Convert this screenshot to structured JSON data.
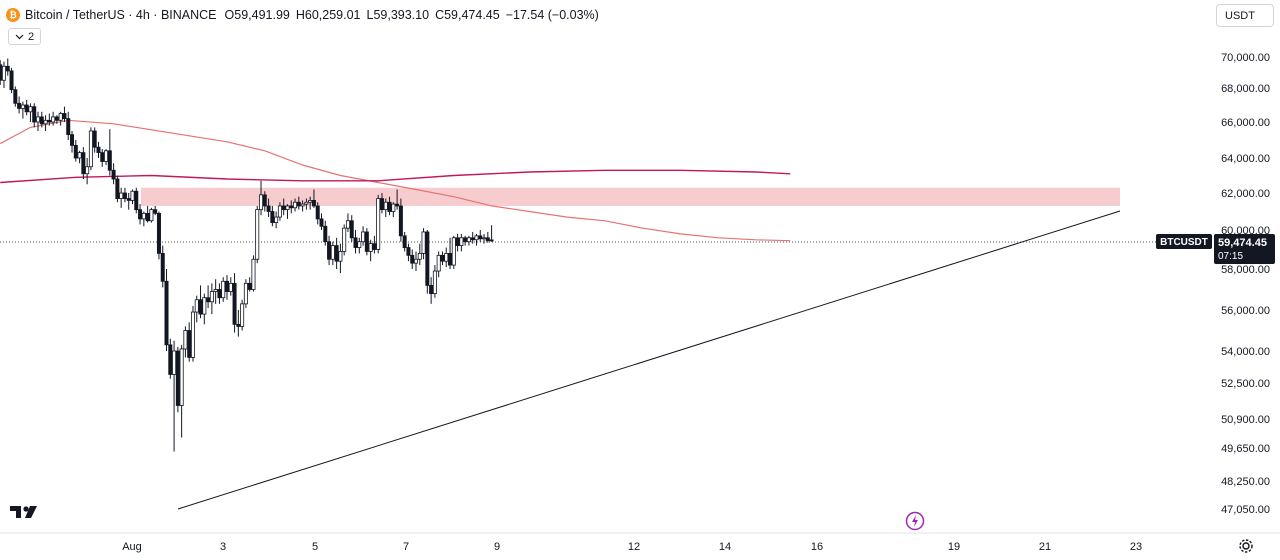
{
  "legend": {
    "coin_icon": "bitcoin-coin-icon",
    "title": "Bitcoin / TetherUS · 4h · BINANCE",
    "open_key": "O",
    "open": "59,491.99",
    "high_key": "H",
    "high": "60,259.01",
    "low_key": "L",
    "low": "59,393.10",
    "close_key": "C",
    "close": "59,474.45",
    "change": "−17.54 (−0.03%)",
    "indicators_count": "2"
  },
  "toolbar": {
    "currency_label": "USDT"
  },
  "price_tag": {
    "symbol": "BTCUSDT",
    "price": "59,474.45",
    "countdown": "07:15"
  },
  "colors": {
    "candle_outline": "#131722",
    "candle_fill_up": "#ffffff",
    "candle_fill_down": "#131722",
    "ma_fast": "#e57373",
    "ma_slow": "#c2185b",
    "zone": "#f6c3c6",
    "trendline": "#131722",
    "price_tag_bg": "#131722"
  },
  "chart_data": {
    "type": "candlestick",
    "symbol": "BTCUSDT",
    "timeframe": "4h",
    "y_ticks": [
      "70,000.00",
      "68,000.00",
      "66,000.00",
      "64,000.00",
      "62,000.00",
      "60,000.00",
      "58,000.00",
      "56,000.00",
      "54,000.00",
      "52,500.00",
      "50,900.00",
      "49,650.00",
      "48,250.00",
      "47,050.00"
    ],
    "y_tick_values": [
      70000,
      68000,
      66000,
      64000,
      62000,
      60000,
      58000,
      56000,
      54000,
      52500,
      50900,
      49650,
      48250,
      47050
    ],
    "x_ticks": [
      "Aug",
      "3",
      "5",
      "7",
      "9",
      "12",
      "14",
      "16",
      "19",
      "21",
      "23"
    ],
    "x_tick_index": [
      0,
      24,
      48,
      72,
      96,
      132,
      156,
      180,
      216,
      240,
      264
    ],
    "candles": [
      [
        69500,
        69800,
        68200,
        68500
      ],
      [
        68500,
        69700,
        68000,
        69400
      ],
      [
        69400,
        69900,
        68800,
        69100
      ],
      [
        69100,
        69300,
        67700,
        67900
      ],
      [
        67900,
        68100,
        66900,
        67100
      ],
      [
        67100,
        67500,
        66500,
        66800
      ],
      [
        66800,
        67200,
        66200,
        67000
      ],
      [
        67000,
        67300,
        66400,
        66600
      ],
      [
        66600,
        67100,
        66000,
        66900
      ],
      [
        66900,
        67100,
        65700,
        66000
      ],
      [
        66000,
        66600,
        65500,
        66300
      ],
      [
        66300,
        66600,
        65700,
        65900
      ],
      [
        65900,
        66400,
        65500,
        66100
      ],
      [
        66100,
        66500,
        65800,
        66000
      ],
      [
        66000,
        66600,
        65800,
        66300
      ],
      [
        66300,
        66400,
        65900,
        66100
      ],
      [
        66100,
        66600,
        65800,
        66500
      ],
      [
        66500,
        66900,
        66000,
        66200
      ],
      [
        66200,
        66600,
        65000,
        65300
      ],
      [
        65300,
        65500,
        64300,
        64700
      ],
      [
        64700,
        65000,
        63800,
        64000
      ],
      [
        64000,
        64400,
        63700,
        64300
      ],
      [
        64300,
        64600,
        62800,
        63100
      ],
      [
        63100,
        64000,
        62500,
        63500
      ],
      [
        63500,
        65700,
        63300,
        65500
      ],
      [
        65500,
        65700,
        64300,
        64600
      ],
      [
        64600,
        64900,
        64000,
        64300
      ],
      [
        64300,
        64500,
        63500,
        63800
      ],
      [
        63800,
        64500,
        63600,
        64400
      ],
      [
        64400,
        65600,
        63000,
        63300
      ],
      [
        63300,
        63700,
        62500,
        62800
      ],
      [
        62800,
        63000,
        61500,
        61700
      ],
      [
        61700,
        62300,
        61200,
        62000
      ],
      [
        62000,
        62300,
        61500,
        61700
      ],
      [
        61700,
        62000,
        61100,
        61600
      ],
      [
        61600,
        62200,
        61400,
        62100
      ],
      [
        62100,
        62300,
        60900,
        61100
      ],
      [
        61100,
        61400,
        60300,
        60600
      ],
      [
        60600,
        61000,
        60200,
        60900
      ],
      [
        60900,
        61300,
        60400,
        60500
      ],
      [
        60500,
        61200,
        60400,
        61100
      ],
      [
        61100,
        61300,
        60800,
        60900
      ],
      [
        60900,
        61000,
        58500,
        58800
      ],
      [
        58800,
        59200,
        57100,
        57400
      ],
      [
        57400,
        58000,
        54000,
        54300
      ],
      [
        54300,
        54600,
        52700,
        52900
      ],
      [
        52900,
        54500,
        49500,
        54000
      ],
      [
        54000,
        54200,
        51200,
        51500
      ],
      [
        51500,
        54300,
        50100,
        54100
      ],
      [
        54100,
        55200,
        53700,
        55000
      ],
      [
        55000,
        55400,
        53500,
        53700
      ],
      [
        53700,
        56200,
        53500,
        55900
      ],
      [
        55900,
        56700,
        55400,
        56500
      ],
      [
        56500,
        57200,
        55600,
        55800
      ],
      [
        55800,
        56800,
        55300,
        56600
      ],
      [
        56600,
        57200,
        56100,
        56400
      ],
      [
        56400,
        57300,
        55800,
        56900
      ],
      [
        56900,
        57500,
        56300,
        57000
      ],
      [
        57000,
        57300,
        56300,
        56600
      ],
      [
        56600,
        57600,
        56400,
        57400
      ],
      [
        57400,
        57700,
        56500,
        56900
      ],
      [
        56900,
        57600,
        56700,
        57300
      ],
      [
        57300,
        57800,
        54900,
        55300
      ],
      [
        55300,
        56000,
        54700,
        55200
      ],
      [
        55200,
        56500,
        55000,
        56300
      ],
      [
        56300,
        57500,
        56100,
        57300
      ],
      [
        57300,
        57600,
        56900,
        57000
      ],
      [
        57000,
        58700,
        56900,
        58500
      ],
      [
        58500,
        61300,
        58300,
        61100
      ],
      [
        61100,
        62700,
        60800,
        61900
      ],
      [
        61900,
        62100,
        61000,
        61300
      ],
      [
        61300,
        61700,
        60700,
        61000
      ],
      [
        61000,
        61300,
        60200,
        60400
      ],
      [
        60400,
        61000,
        60100,
        60700
      ],
      [
        60700,
        61500,
        60500,
        61300
      ],
      [
        61300,
        61700,
        60800,
        61100
      ],
      [
        61100,
        61400,
        60600,
        61300
      ],
      [
        61300,
        61600,
        60900,
        61200
      ],
      [
        61200,
        61700,
        61000,
        61500
      ],
      [
        61500,
        61800,
        61100,
        61300
      ],
      [
        61300,
        61600,
        61000,
        61400
      ],
      [
        61400,
        61700,
        61100,
        61500
      ],
      [
        61500,
        61800,
        61100,
        61600
      ],
      [
        61600,
        62200,
        61200,
        61300
      ],
      [
        61300,
        61500,
        60300,
        60600
      ],
      [
        60600,
        60900,
        60000,
        60200
      ],
      [
        60200,
        60500,
        59200,
        59400
      ],
      [
        59400,
        59700,
        58200,
        58500
      ],
      [
        58500,
        59400,
        58200,
        59200
      ],
      [
        59200,
        59600,
        58000,
        58400
      ],
      [
        58400,
        59300,
        57800,
        58900
      ],
      [
        58900,
        60300,
        58700,
        60100
      ],
      [
        60100,
        60900,
        59900,
        60500
      ],
      [
        60500,
        60800,
        59400,
        59600
      ],
      [
        59600,
        60000,
        58800,
        59100
      ],
      [
        59100,
        59600,
        58800,
        59400
      ],
      [
        59400,
        60200,
        59200,
        59900
      ],
      [
        59900,
        60100,
        58700,
        58900
      ],
      [
        58900,
        59500,
        58400,
        59300
      ],
      [
        59300,
        59700,
        58800,
        59000
      ],
      [
        59000,
        61900,
        58800,
        61700
      ],
      [
        61700,
        62000,
        60900,
        61100
      ],
      [
        61100,
        61700,
        60700,
        61500
      ],
      [
        61500,
        61800,
        60800,
        61000
      ],
      [
        61000,
        61500,
        60700,
        61400
      ],
      [
        61400,
        62200,
        61100,
        61300
      ],
      [
        61300,
        61700,
        59400,
        59700
      ],
      [
        59700,
        59900,
        58900,
        59100
      ],
      [
        59100,
        59300,
        58400,
        58700
      ],
      [
        58700,
        59000,
        58000,
        58300
      ],
      [
        58300,
        58900,
        57900,
        58500
      ],
      [
        58500,
        59300,
        58200,
        58800
      ],
      [
        58800,
        60100,
        58500,
        59900
      ],
      [
        59900,
        60000,
        56800,
        57200
      ],
      [
        57200,
        57600,
        56300,
        56800
      ],
      [
        56800,
        58200,
        56600,
        57900
      ],
      [
        57900,
        58900,
        57600,
        58700
      ],
      [
        58700,
        58900,
        58200,
        58400
      ],
      [
        58400,
        59100,
        58100,
        58800
      ],
      [
        58800,
        59600,
        58000,
        58200
      ],
      [
        58200,
        59700,
        58000,
        59600
      ],
      [
        59600,
        59800,
        58900,
        59200
      ],
      [
        59200,
        59800,
        58900,
        59600
      ],
      [
        59600,
        59700,
        59200,
        59400
      ],
      [
        59400,
        59700,
        59200,
        59600
      ],
      [
        59600,
        59900,
        59300,
        59500
      ],
      [
        59500,
        59800,
        59200,
        59700
      ],
      [
        59700,
        60000,
        59400,
        59550
      ],
      [
        59550,
        59800,
        59300,
        59600
      ],
      [
        59600,
        59900,
        59350,
        59450
      ],
      [
        59491.99,
        60259.01,
        59393.1,
        59474.45
      ]
    ],
    "ma_fast": [
      [
        0,
        64800
      ],
      [
        8,
        65700
      ],
      [
        18,
        66100
      ],
      [
        30,
        65900
      ],
      [
        45,
        65400
      ],
      [
        60,
        64900
      ],
      [
        70,
        64400
      ],
      [
        80,
        63600
      ],
      [
        90,
        63000
      ],
      [
        100,
        62600
      ],
      [
        110,
        62200
      ],
      [
        120,
        61800
      ],
      [
        130,
        61300
      ],
      [
        140,
        61000
      ],
      [
        150,
        60700
      ],
      [
        160,
        60500
      ],
      [
        170,
        60100
      ],
      [
        180,
        59800
      ],
      [
        190,
        59600
      ],
      [
        200,
        59500
      ],
      [
        209,
        59450
      ]
    ],
    "ma_slow": [
      [
        0,
        62600
      ],
      [
        20,
        62900
      ],
      [
        40,
        63000
      ],
      [
        60,
        62800
      ],
      [
        80,
        62700
      ],
      [
        100,
        62700
      ],
      [
        120,
        63000
      ],
      [
        140,
        63200
      ],
      [
        160,
        63300
      ],
      [
        180,
        63300
      ],
      [
        200,
        63200
      ],
      [
        209,
        63100
      ]
    ],
    "resistance_zone": {
      "from_index": 30,
      "to_index": 260,
      "low": 61300,
      "high": 62300
    },
    "trendline": {
      "from": [
        37,
        47050
      ],
      "to": [
        260,
        61200
      ]
    },
    "last_price": 59474.45
  },
  "icons": {
    "logo": "tradingview-logo-icon",
    "flash": "flash-icon",
    "settings": "settings-gear-icon"
  }
}
